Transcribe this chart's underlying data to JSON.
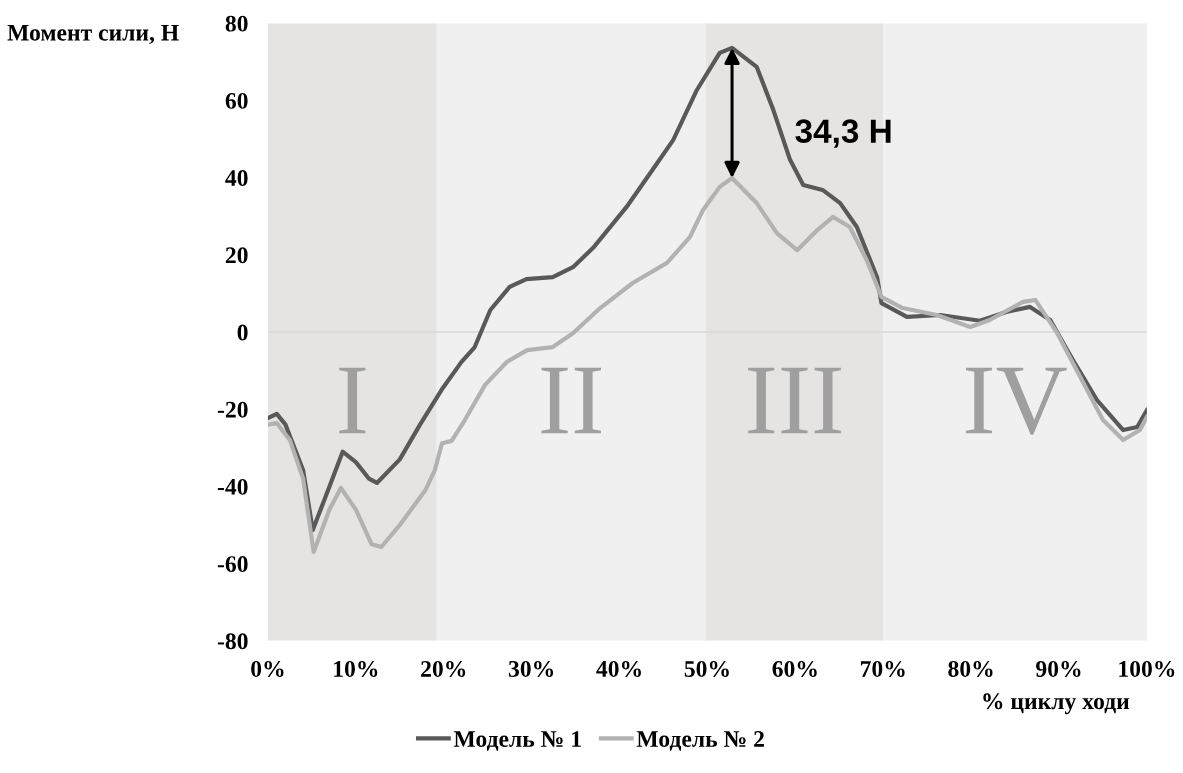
{
  "chart_data": {
    "type": "line",
    "xlabel": "% циклу ходи",
    "ylabel": "Момент сили, Н",
    "series": [
      {
        "name": "Модель № 1",
        "color": "#595959",
        "x": [
          0,
          1,
          2,
          4,
          5.1,
          7,
          8.5,
          10,
          11.5,
          12.4,
          15,
          17.3,
          19.9,
          22,
          23.5,
          25.3,
          27.5,
          29.4,
          32.4,
          34.7,
          37,
          40.8,
          43.5,
          46.1,
          48.8,
          51.4,
          52.8,
          55.6,
          57.5,
          59.4,
          60.9,
          63.1,
          65.1,
          67,
          69.3,
          69.8,
          72.7,
          76.5,
          81,
          84,
          86.7,
          89,
          91.6,
          94.3,
          97.3,
          98.9,
          100
        ],
        "values": [
          -22.3,
          -21.2,
          -24,
          -35.8,
          -51.3,
          -40,
          -31,
          -33.7,
          -38,
          -39.1,
          -33,
          -24,
          -14.5,
          -7.8,
          -4,
          5.7,
          11.7,
          13.7,
          14.2,
          16.8,
          21.8,
          32.4,
          41.2,
          49.7,
          62.7,
          72.3,
          73.6,
          68.7,
          57.5,
          44.6,
          38.1,
          36.8,
          33.4,
          27.2,
          14.2,
          7.5,
          3.9,
          4.4,
          2.9,
          5.2,
          6.5,
          3.1,
          -7.3,
          -17.6,
          -25.4,
          -24.6,
          -20.2
        ]
      },
      {
        "name": "Модель № 2",
        "color": "#b2b2b2",
        "x": [
          0,
          1,
          2.5,
          4,
          5.2,
          7,
          8.3,
          10,
          11.8,
          12.9,
          15,
          17.9,
          19,
          19.8,
          20.9,
          22.4,
          24.7,
          27.2,
          29.5,
          32.4,
          34.7,
          37.8,
          41.5,
          45.4,
          48,
          49.5,
          51.4,
          52.8,
          55.6,
          57.9,
          60.2,
          62.5,
          64.3,
          66.2,
          68.1,
          69.8,
          72.2,
          76.1,
          79.9,
          82.1,
          85.9,
          87.3,
          89.8,
          92.4,
          95,
          97.3,
          99.2,
          100
        ],
        "values": [
          -24,
          -23.6,
          -28,
          -38,
          -57,
          -46,
          -40.4,
          -46,
          -55,
          -55.7,
          -50,
          -41,
          -35.7,
          -28.8,
          -28.2,
          -22.8,
          -13.7,
          -7.7,
          -4.7,
          -3.9,
          -0.3,
          6.2,
          12.7,
          17.9,
          24.6,
          31.6,
          37.6,
          39.9,
          33.4,
          25.6,
          21.2,
          26.4,
          29.8,
          27.2,
          18.7,
          9.1,
          6.2,
          4.4,
          1.3,
          3.1,
          7.8,
          8.3,
          -0.3,
          -11.6,
          -22.8,
          -28,
          -25.4,
          -22
        ]
      }
    ],
    "xlim": [
      0,
      100
    ],
    "xticks": [
      {
        "value": 0,
        "label": "0%"
      },
      {
        "value": 10,
        "label": "10%"
      },
      {
        "value": 20,
        "label": "20%"
      },
      {
        "value": 30,
        "label": "30%"
      },
      {
        "value": 40,
        "label": "40%"
      },
      {
        "value": 50,
        "label": "50%"
      },
      {
        "value": 60,
        "label": "60%"
      },
      {
        "value": 70,
        "label": "70%"
      },
      {
        "value": 80,
        "label": "80%"
      },
      {
        "value": 90,
        "label": "90%"
      },
      {
        "value": 100,
        "label": "100%"
      }
    ],
    "ylim": [
      -80,
      80
    ],
    "yticks": [
      -80,
      -60,
      -40,
      -20,
      0,
      20,
      40,
      60,
      80
    ],
    "bands": [
      {
        "axis": "x",
        "from": 0,
        "to": 19.2,
        "label": "I",
        "color": "#e5e4e3"
      },
      {
        "axis": "x",
        "from": 19.2,
        "to": 49.8,
        "label": "II",
        "color": "#f0f0f0"
      },
      {
        "axis": "x",
        "from": 49.8,
        "to": 70,
        "label": "III",
        "color": "#e5e4e3"
      },
      {
        "axis": "x",
        "from": 70,
        "to": 100,
        "label": "IV",
        "color": "#f0f0f0"
      }
    ],
    "ref_lines": [
      {
        "axis": "y",
        "value": 0,
        "color": "#d9d9d9"
      }
    ],
    "annotations": [
      "34,3 Н"
    ],
    "legend": "bottom",
    "grid": false,
    "marker": "none",
    "line_style": "solid"
  }
}
